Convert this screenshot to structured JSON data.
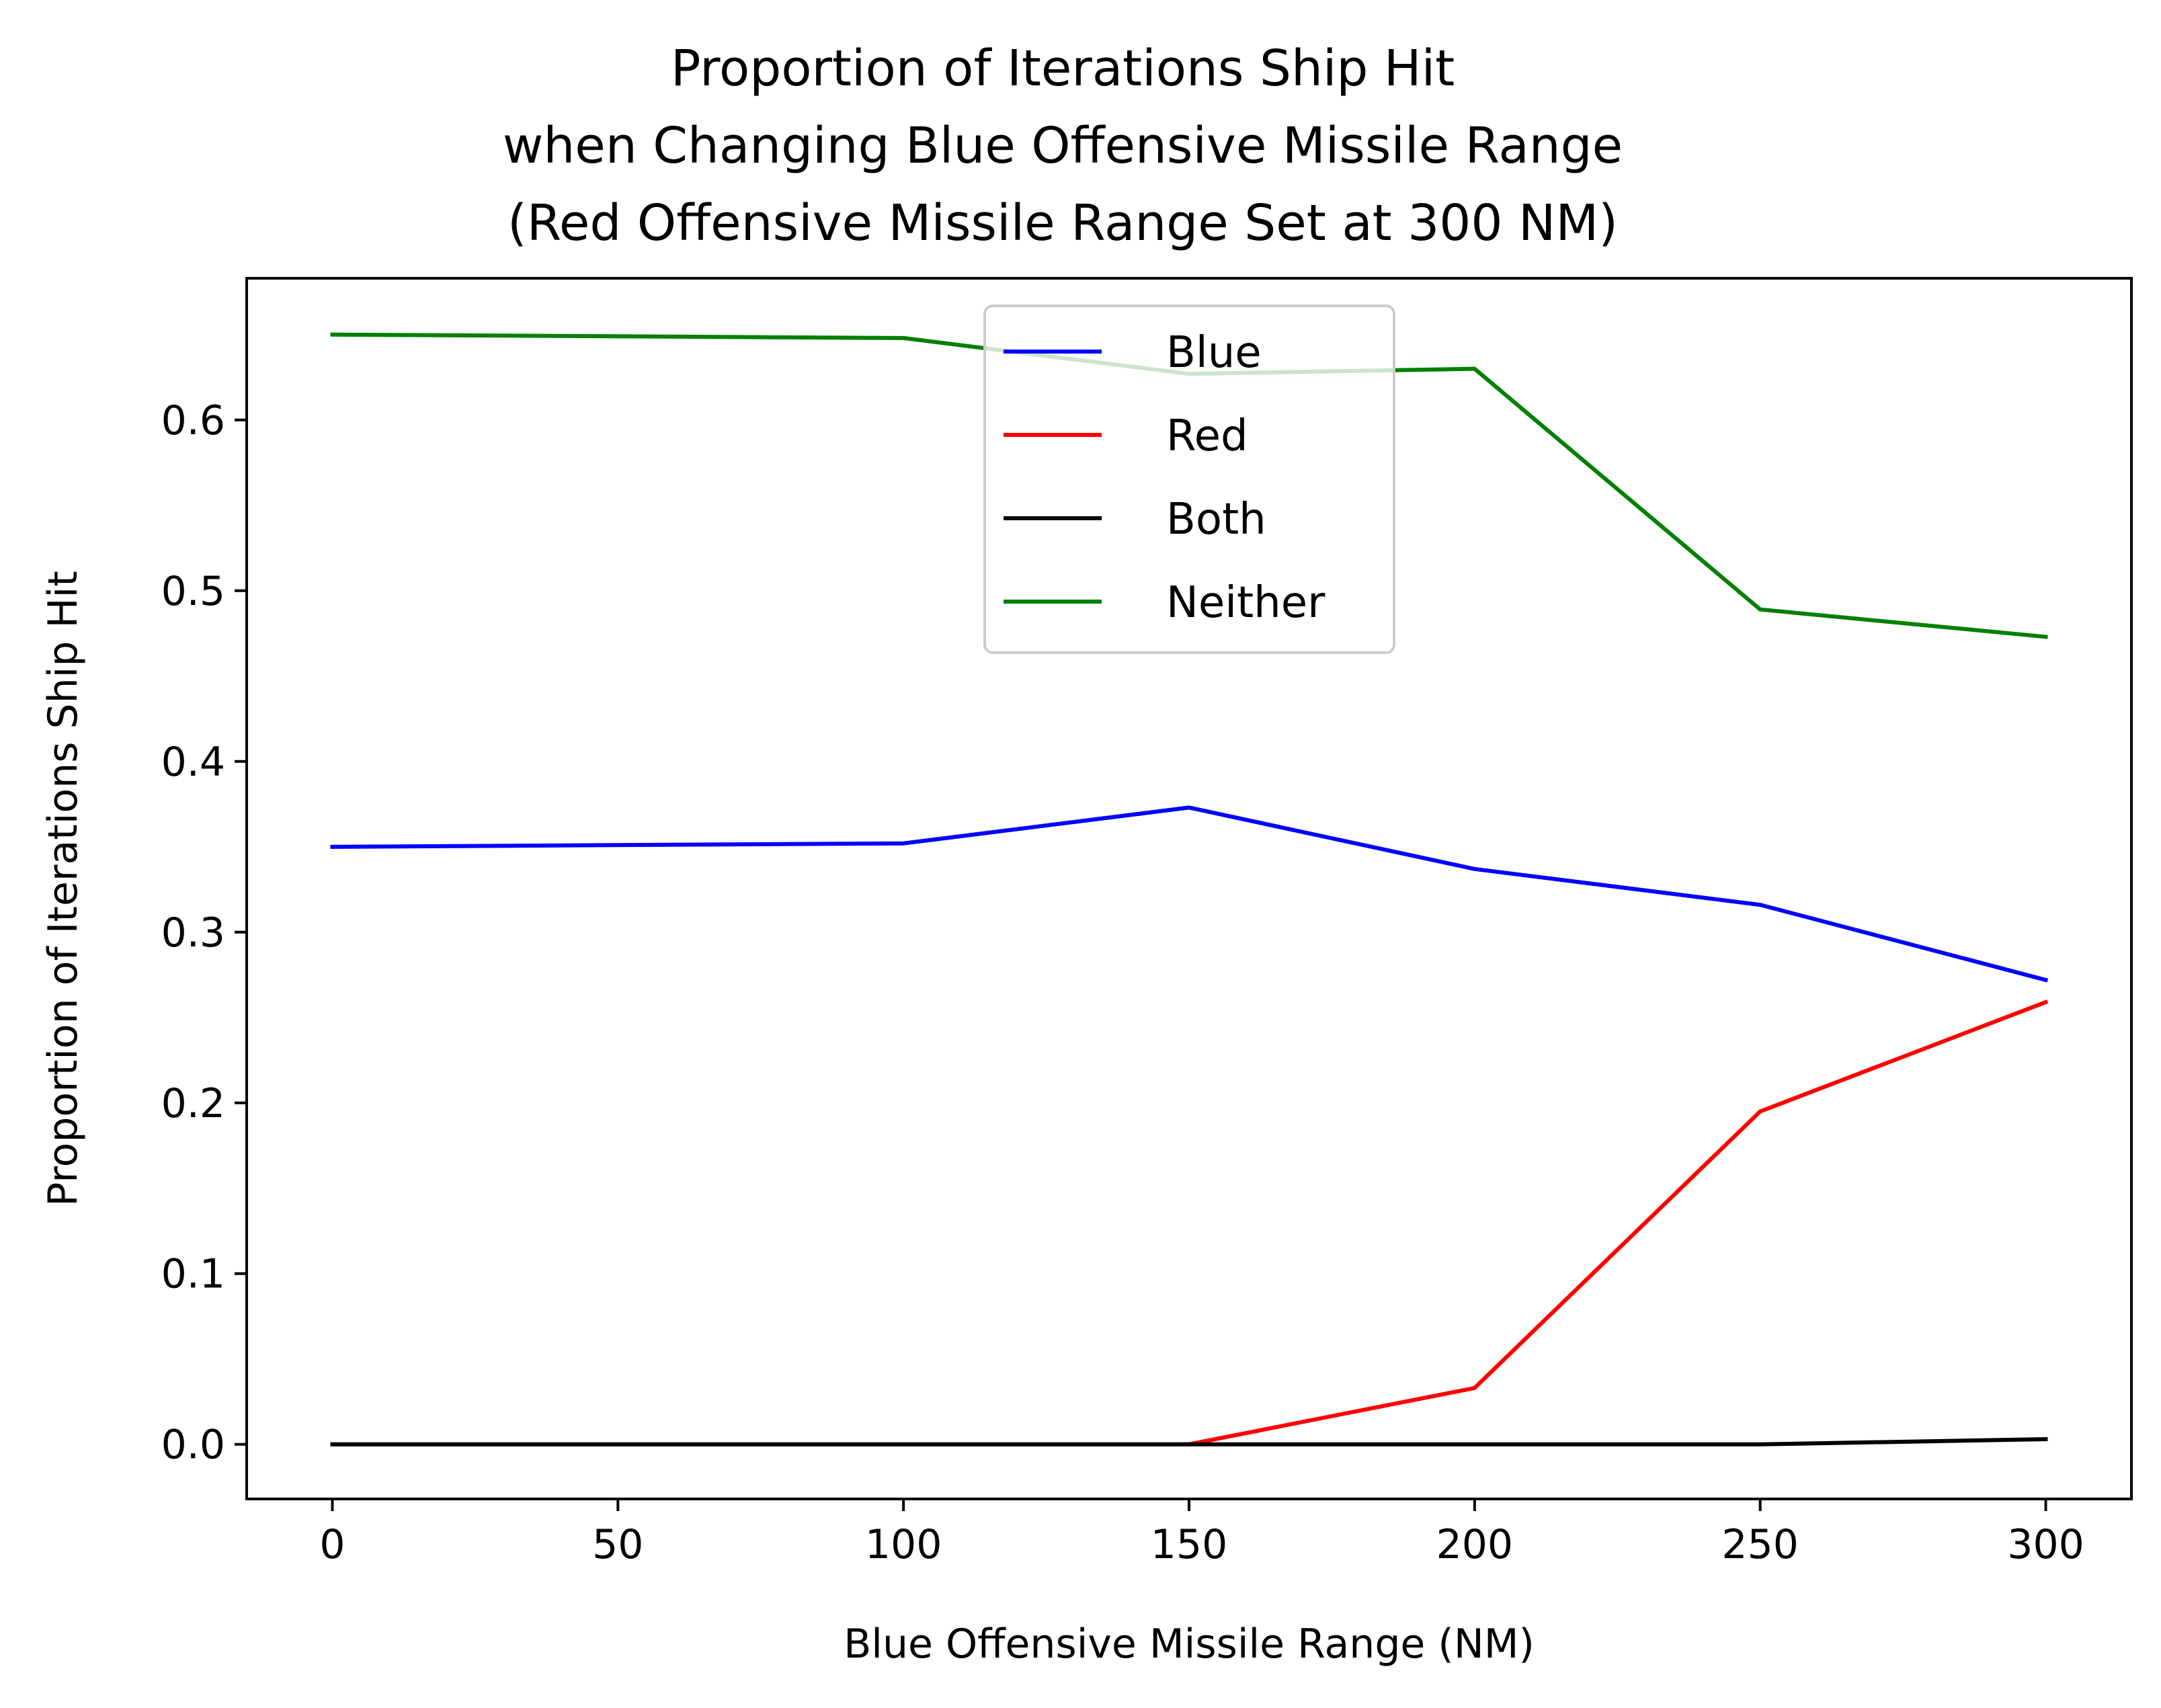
{
  "chart_data": {
    "type": "line",
    "title_lines": [
      "Proportion of Iterations Ship Hit",
      "when Changing Blue Offensive Missile Range",
      "(Red Offensive Missile Range Set at 300 NM)"
    ],
    "xlabel": "Blue Offensive Missile Range (NM)",
    "ylabel": "Proportion of Iterations Ship Hit",
    "x": [
      0,
      100,
      150,
      200,
      250,
      300
    ],
    "xlim": [
      -15,
      315
    ],
    "ylim": [
      -0.032,
      0.683
    ],
    "xticks": [
      0,
      50,
      100,
      150,
      200,
      250,
      300
    ],
    "xtick_labels": [
      "0",
      "50",
      "100",
      "150",
      "200",
      "250",
      "300"
    ],
    "yticks": [
      0.0,
      0.1,
      0.2,
      0.3,
      0.4,
      0.5,
      0.6
    ],
    "ytick_labels": [
      "0.0",
      "0.1",
      "0.2",
      "0.3",
      "0.4",
      "0.5",
      "0.6"
    ],
    "grid": false,
    "legend_position": "upper-center",
    "series": [
      {
        "name": "Blue",
        "color": "#0000ff",
        "values": [
          0.35,
          0.352,
          0.373,
          0.337,
          0.316,
          0.272
        ]
      },
      {
        "name": "Red",
        "color": "#ff0000",
        "values": [
          0.0,
          0.0,
          0.0,
          0.033,
          0.195,
          0.259
        ]
      },
      {
        "name": "Both",
        "color": "#000000",
        "values": [
          0.0,
          0.0,
          0.0,
          0.0,
          0.0,
          0.003
        ]
      },
      {
        "name": "Neither",
        "color": "#008000",
        "values": [
          0.65,
          0.648,
          0.627,
          0.63,
          0.489,
          0.473
        ]
      }
    ]
  }
}
